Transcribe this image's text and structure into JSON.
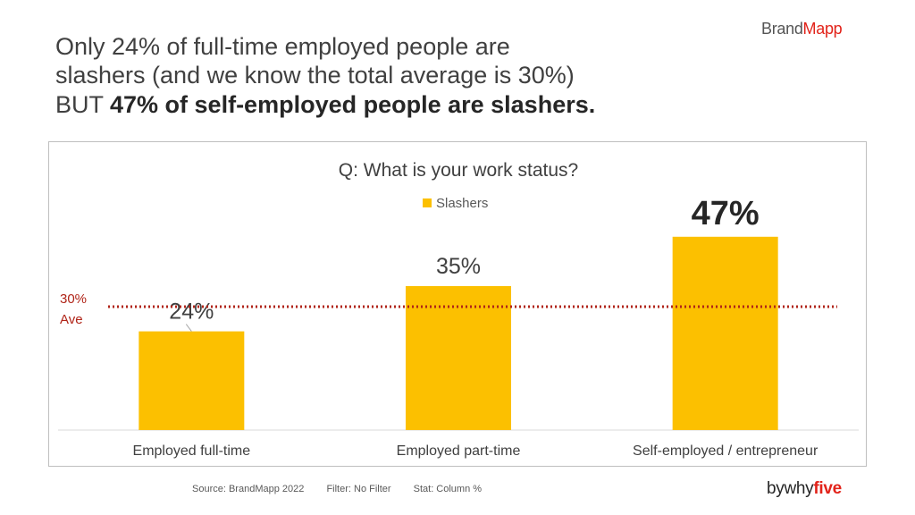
{
  "headline": {
    "line1": "Only 24% of full-time employed people are",
    "line2": "slashers (and we know the total average is 30%)",
    "line3_prefix": "BUT ",
    "line3_bold": "47% of self-employed people are slashers."
  },
  "brand": {
    "part1": "Brand",
    "part2": "Mapp",
    "accent_color": "#e2231a"
  },
  "footer": {
    "source": "Source: BrandMapp 2022",
    "filter": "Filter: No Filter",
    "stat": "Stat: Column %"
  },
  "partner_logo": {
    "part1": "bywhy",
    "part2": "five"
  },
  "chart_data": {
    "type": "bar",
    "title": "Q: What is your work status?",
    "categories": [
      "Employed full-time",
      "Employed part-time",
      "Self-employed / entrepreneur"
    ],
    "series": [
      {
        "name": "Slashers",
        "values": [
          24,
          35,
          47
        ],
        "color": "#fcc000",
        "data_labels": [
          "24%",
          "35%",
          "47%"
        ]
      }
    ],
    "reference_line": {
      "value": 30,
      "label_line1": "30%",
      "label_line2": "Ave",
      "color": "#b02418"
    },
    "ylim": [
      0,
      60
    ],
    "legend": "top-center",
    "grid": false
  }
}
